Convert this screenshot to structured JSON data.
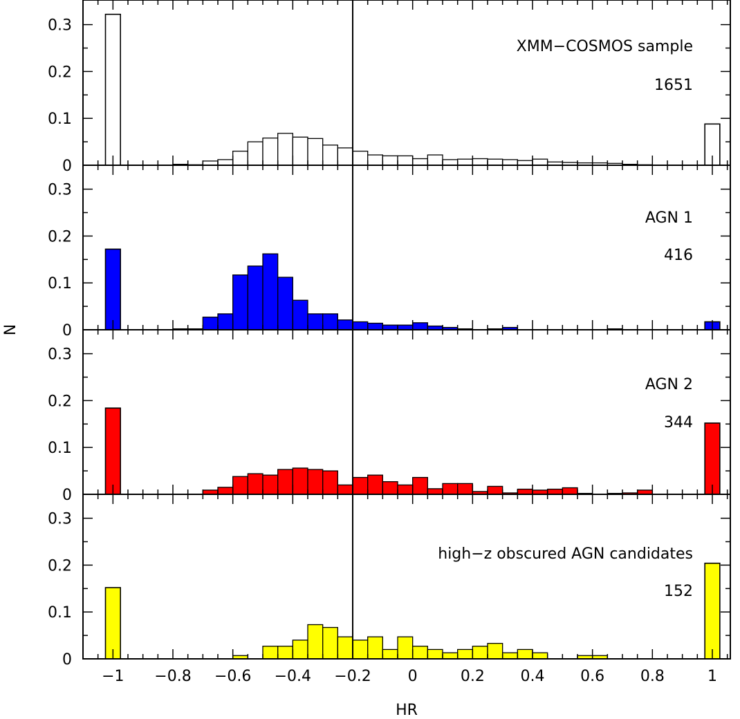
{
  "chart_data": {
    "type": "bar",
    "xlabel": "HR",
    "ylabel": "N",
    "xlim": [
      -1.1,
      1.06
    ],
    "ylim": [
      0,
      0.35
    ],
    "grid": false,
    "bin_width": 0.05,
    "x_ticks": [
      -1,
      -0.8,
      -0.6,
      -0.4,
      -0.2,
      0,
      0.2,
      0.4,
      0.6,
      0.8,
      1
    ],
    "x_tick_labels": [
      "−1",
      "−0.8",
      "−0.6",
      "−0.4",
      "−0.2",
      "0",
      "0.2",
      "0.4",
      "0.6",
      "0.8",
      "1"
    ],
    "y_ticks": [
      0,
      0.1,
      0.2,
      0.3
    ],
    "y_tick_labels": [
      "0",
      "0.1",
      "0.2",
      "0.3"
    ],
    "vertical_line_x": -0.2,
    "panels": [
      {
        "label": "XMM−COSMOS sample",
        "count": "1651",
        "fill": "#ffffff",
        "x_centers": [
          -0.775,
          -0.725,
          -0.675,
          -0.625,
          -0.575,
          -0.525,
          -0.475,
          -0.425,
          -0.375,
          -0.325,
          -0.275,
          -0.225,
          -0.175,
          -0.125,
          -0.075,
          -0.025,
          0.025,
          0.075,
          0.125,
          0.175,
          0.225,
          0.275,
          0.325,
          0.375,
          0.425,
          0.475,
          0.525,
          0.575,
          0.625,
          0.675,
          0.725,
          0.775
        ],
        "values": [
          0.002,
          0.001,
          0.009,
          0.012,
          0.03,
          0.05,
          0.058,
          0.068,
          0.06,
          0.057,
          0.043,
          0.037,
          0.03,
          0.022,
          0.02,
          0.02,
          0.014,
          0.022,
          0.012,
          0.013,
          0.014,
          0.013,
          0.012,
          0.01,
          0.013,
          0.007,
          0.006,
          0.005,
          0.005,
          0.004,
          0.002,
          0.001
        ],
        "edge_values": [
          0.322,
          0.088
        ]
      },
      {
        "label": "AGN 1",
        "count": "416",
        "fill": "#0000ff",
        "x_centers": [
          -0.775,
          -0.725,
          -0.675,
          -0.625,
          -0.575,
          -0.525,
          -0.475,
          -0.425,
          -0.375,
          -0.325,
          -0.275,
          -0.225,
          -0.175,
          -0.125,
          -0.075,
          -0.025,
          0.025,
          0.075,
          0.125,
          0.175,
          0.275,
          0.325,
          0.675
        ],
        "values": [
          0.002,
          0.002,
          0.027,
          0.034,
          0.117,
          0.136,
          0.162,
          0.112,
          0.063,
          0.034,
          0.034,
          0.021,
          0.017,
          0.014,
          0.01,
          0.01,
          0.015,
          0.008,
          0.005,
          0.002,
          0.002,
          0.005,
          0.002
        ],
        "edge_values": [
          0.172,
          0.017
        ]
      },
      {
        "label": "AGN 2",
        "count": "344",
        "fill": "#ff0000",
        "x_centers": [
          -0.675,
          -0.625,
          -0.575,
          -0.525,
          -0.475,
          -0.425,
          -0.375,
          -0.325,
          -0.275,
          -0.225,
          -0.175,
          -0.125,
          -0.075,
          -0.025,
          0.025,
          0.075,
          0.125,
          0.175,
          0.225,
          0.275,
          0.325,
          0.375,
          0.425,
          0.475,
          0.525,
          0.575,
          0.675,
          0.725,
          0.775
        ],
        "values": [
          0.009,
          0.015,
          0.038,
          0.044,
          0.041,
          0.053,
          0.056,
          0.053,
          0.05,
          0.02,
          0.036,
          0.041,
          0.027,
          0.02,
          0.036,
          0.012,
          0.023,
          0.023,
          0.006,
          0.017,
          0.003,
          0.011,
          0.009,
          0.011,
          0.014,
          0.002,
          0.002,
          0.003,
          0.009
        ],
        "edge_values": [
          0.184,
          0.152
        ]
      },
      {
        "label": "high−z obscured AGN candidates",
        "count": "152",
        "fill": "#ffff00",
        "x_centers": [
          -0.575,
          -0.475,
          -0.425,
          -0.375,
          -0.325,
          -0.275,
          -0.225,
          -0.175,
          -0.125,
          -0.075,
          -0.025,
          0.025,
          0.075,
          0.125,
          0.175,
          0.225,
          0.275,
          0.325,
          0.375,
          0.425,
          0.575,
          0.625
        ],
        "values": [
          0.007,
          0.027,
          0.027,
          0.04,
          0.073,
          0.067,
          0.047,
          0.04,
          0.047,
          0.02,
          0.047,
          0.027,
          0.02,
          0.013,
          0.02,
          0.027,
          0.033,
          0.013,
          0.02,
          0.013,
          0.007,
          0.007
        ],
        "edge_values": [
          0.152,
          0.204
        ]
      }
    ]
  }
}
